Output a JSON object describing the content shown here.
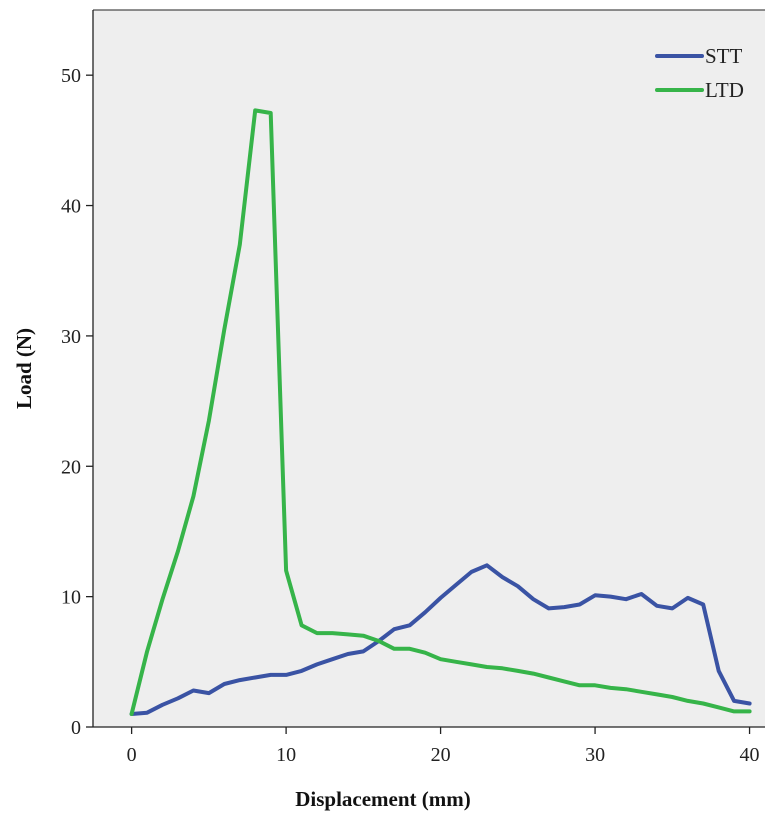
{
  "chart_data": {
    "type": "line",
    "title": "",
    "xlabel": "Displacement (mm)",
    "ylabel": "Load (N)",
    "xlim": [
      -2.5,
      41
    ],
    "ylim": [
      0,
      55
    ],
    "xticks": [
      "0",
      "10",
      "20",
      "30",
      "40"
    ],
    "yticks": [
      "0",
      "10",
      "20",
      "30",
      "40",
      "50"
    ],
    "grid": false,
    "background": "#eeeeee",
    "legend_position": "top-right",
    "series": [
      {
        "name": "STT",
        "color": "#3a53a4",
        "x": [
          0,
          1,
          2,
          3,
          4,
          5,
          6,
          7,
          8,
          9,
          10,
          11,
          12,
          13,
          14,
          15,
          16,
          17,
          18,
          19,
          20,
          21,
          22,
          23,
          24,
          25,
          26,
          27,
          28,
          29,
          30,
          31,
          32,
          33,
          34,
          35,
          36,
          37,
          38,
          39,
          40
        ],
        "y": [
          1.0,
          1.1,
          1.7,
          2.2,
          2.8,
          2.6,
          3.3,
          3.6,
          3.8,
          4.0,
          4.0,
          4.3,
          4.8,
          5.2,
          5.6,
          5.8,
          6.6,
          7.5,
          7.8,
          8.8,
          9.9,
          10.9,
          11.9,
          12.4,
          11.5,
          10.8,
          9.8,
          9.1,
          9.2,
          9.4,
          10.1,
          10.0,
          9.8,
          10.2,
          9.3,
          9.1,
          9.9,
          9.4,
          4.3,
          2.0,
          1.8
        ]
      },
      {
        "name": "LTD",
        "color": "#36b449",
        "x": [
          0,
          1,
          2,
          3,
          4,
          5,
          6,
          7,
          8,
          9,
          10,
          11,
          12,
          13,
          14,
          15,
          16,
          17,
          18,
          19,
          20,
          21,
          22,
          23,
          24,
          25,
          26,
          27,
          28,
          29,
          30,
          31,
          32,
          33,
          34,
          35,
          36,
          37,
          38,
          39,
          40
        ],
        "y": [
          1.0,
          5.8,
          9.8,
          13.5,
          17.7,
          23.5,
          30.5,
          37.0,
          47.3,
          47.1,
          12.0,
          7.8,
          7.2,
          7.2,
          7.1,
          7.0,
          6.6,
          6.0,
          6.0,
          5.7,
          5.2,
          5.0,
          4.8,
          4.6,
          4.5,
          4.3,
          4.1,
          3.8,
          3.5,
          3.2,
          3.2,
          3.0,
          2.9,
          2.7,
          2.5,
          2.3,
          2.0,
          1.8,
          1.5,
          1.2,
          1.2
        ]
      }
    ]
  }
}
